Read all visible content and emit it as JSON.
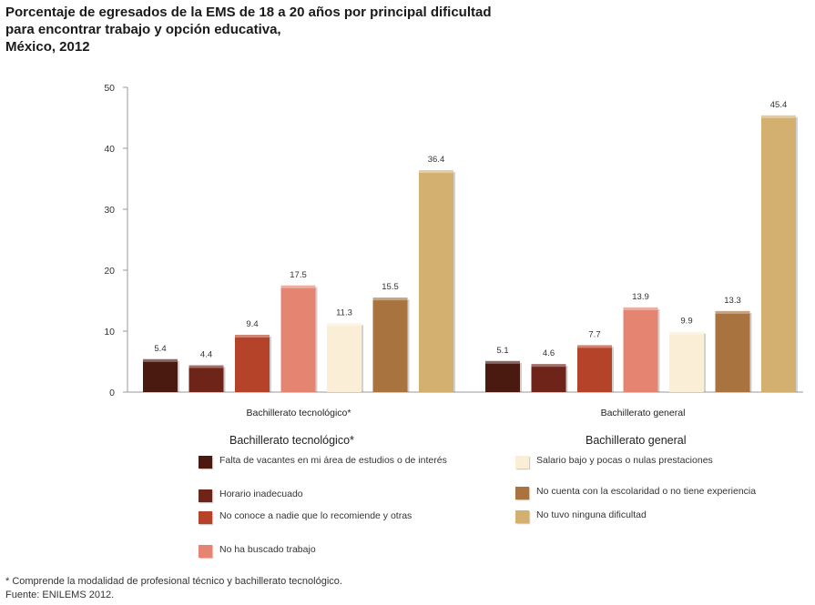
{
  "title": {
    "line1": "Porcentaje de egresados de la EMS de 18 a 20 años por principal dificultad",
    "line2": "para encontrar trabajo y opción educativa,",
    "line3": "México, 2012"
  },
  "chart_data": {
    "type": "bar",
    "ylim": [
      0,
      50
    ],
    "yticks": [
      0,
      10,
      20,
      30,
      40,
      50
    ],
    "grid": false,
    "categories": [
      "Bachillerato tecnológico*",
      "Bachillerato general"
    ],
    "series": [
      {
        "name": "Falta de vacantes en mi área de estudios o de interés",
        "color": "#4a1a10",
        "values": [
          5.4,
          5.1
        ],
        "labels": [
          "5.4",
          "5.1"
        ]
      },
      {
        "name": "Horario inadecuado",
        "color": "#6e2419",
        "values": [
          4.4,
          4.6
        ],
        "labels": [
          "4.4",
          "4.6"
        ]
      },
      {
        "name": "No conoce a nadie que lo recomiende y otras",
        "color": "#b5432a",
        "values": [
          9.4,
          7.7
        ],
        "labels": [
          "9.4",
          "7.7"
        ]
      },
      {
        "name": "No ha buscado trabajo",
        "color": "#e58470",
        "values": [
          17.5,
          13.9
        ],
        "labels": [
          "17.5",
          "13.9"
        ]
      },
      {
        "name": "Salario bajo y pocas o nulas prestaciones",
        "color": "#fbeed6",
        "values": [
          11.3,
          9.9
        ],
        "labels": [
          "11.3",
          "9.9"
        ]
      },
      {
        "name": "No cuenta con la escolaridad o no tiene experiencia",
        "color": "#a8733f",
        "values": [
          15.5,
          13.3
        ],
        "labels": [
          "15.5",
          "13.3"
        ]
      },
      {
        "name": "No tuvo ninguna dificultad",
        "color": "#d4b070",
        "values": [
          36.4,
          45.4
        ],
        "labels": [
          "36.4",
          "45.4"
        ]
      }
    ]
  },
  "legend": {
    "left_heading": "Bachillerato tecnológico*",
    "right_heading": "Bachillerato general"
  },
  "footnotes": {
    "note": "* Comprende la modalidad de profesional técnico y bachillerato tecnológico.",
    "source": "Fuente: ENILEMS 2012."
  }
}
